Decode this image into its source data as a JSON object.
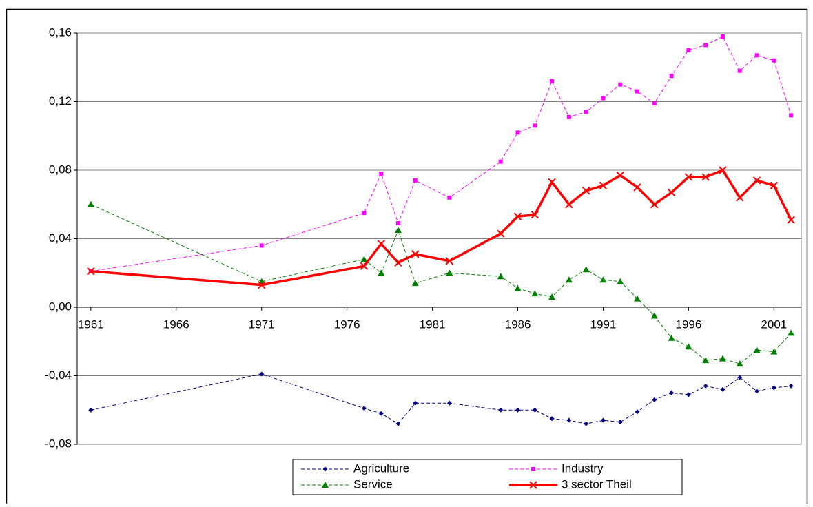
{
  "chart_data": {
    "type": "line",
    "x": [
      1961,
      1971,
      1977,
      1978,
      1979,
      1980,
      1982,
      1985,
      1986,
      1987,
      1988,
      1989,
      1990,
      1991,
      1992,
      1993,
      1994,
      1995,
      1996,
      1997,
      1998,
      1999,
      2000,
      2001,
      2002
    ],
    "xlim": [
      1960.2,
      2002.6
    ],
    "xticks": [
      1961,
      1966,
      1971,
      1976,
      1981,
      1986,
      1991,
      1996,
      2001
    ],
    "ylim": [
      -0.08,
      0.16
    ],
    "yticks": [
      {
        "value": -0.08,
        "label": "-0,08"
      },
      {
        "value": -0.04,
        "label": "-0,04"
      },
      {
        "value": 0,
        "label": "0,00"
      },
      {
        "value": 0.04,
        "label": "0,04"
      },
      {
        "value": 0.08,
        "label": "0,08"
      },
      {
        "value": 0.12,
        "label": "0,12"
      },
      {
        "value": 0.16,
        "label": "0,16"
      }
    ],
    "grid": true,
    "legend": "bottom",
    "series": [
      {
        "name": "Agriculture",
        "color": "#000080",
        "marker": "diamond",
        "dashed": true,
        "values": [
          -0.06,
          -0.039,
          -0.059,
          -0.062,
          -0.068,
          -0.056,
          -0.056,
          -0.06,
          -0.06,
          -0.06,
          -0.065,
          -0.066,
          -0.068,
          -0.066,
          -0.067,
          -0.061,
          -0.054,
          -0.05,
          -0.051,
          -0.046,
          -0.048,
          -0.041,
          -0.049,
          -0.047,
          -0.046
        ]
      },
      {
        "name": "Industry",
        "color": "#ff00ff",
        "marker": "square",
        "dashed": true,
        "values": [
          0.021,
          0.036,
          0.055,
          0.078,
          0.049,
          0.074,
          0.064,
          0.085,
          0.102,
          0.106,
          0.132,
          0.111,
          0.114,
          0.122,
          0.13,
          0.126,
          0.119,
          0.135,
          0.15,
          0.153,
          0.158,
          0.138,
          0.147,
          0.144,
          0.112
        ]
      },
      {
        "name": "Service",
        "color": "#008000",
        "marker": "triangle",
        "dashed": true,
        "values": [
          0.06,
          0.015,
          0.028,
          0.02,
          0.045,
          0.014,
          0.02,
          0.018,
          0.011,
          0.008,
          0.006,
          0.016,
          0.022,
          0.016,
          0.015,
          0.005,
          -0.005,
          -0.018,
          -0.023,
          -0.031,
          -0.03,
          -0.033,
          -0.025,
          -0.026,
          -0.015
        ]
      },
      {
        "name": "3 sector Theil",
        "color": "#ff0000",
        "marker": "x",
        "dashed": false,
        "values": [
          0.021,
          0.013,
          0.024,
          0.037,
          0.026,
          0.031,
          0.027,
          0.043,
          0.053,
          0.054,
          0.073,
          0.06,
          0.068,
          0.071,
          0.077,
          0.07,
          0.06,
          0.067,
          0.076,
          0.076,
          0.08,
          0.064,
          0.074,
          0.071,
          0.051
        ]
      }
    ]
  }
}
